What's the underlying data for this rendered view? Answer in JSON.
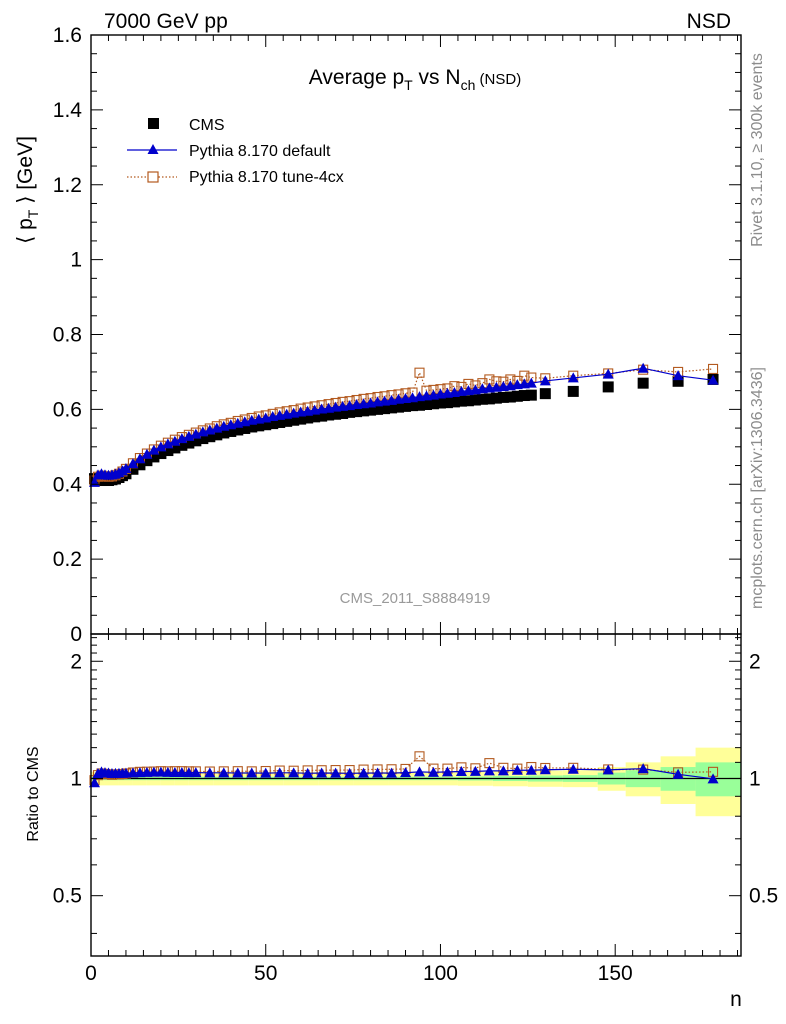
{
  "header": {
    "left": "7000 GeV pp",
    "right": "NSD"
  },
  "side_text": {
    "rivet": "Rivet 3.1.10, ≥ 300k events",
    "mcplots": "mcplots.cern.ch [arXiv:1306.3436]"
  },
  "chart_data": [
    {
      "type": "scatter",
      "title": "Average p_T vs N_ch (NSD)",
      "title_parts": {
        "main": "Average p",
        "sub1": "T",
        "mid": " vs N",
        "sub2": "ch",
        "tail": " (NSD)"
      },
      "ylabel": "⟨ p_T ⟩ [GeV]",
      "ylabel_parts": {
        "pre": "⟨ p",
        "sub": "T",
        "post": " ⟩ [GeV]"
      },
      "xlabel": "n",
      "watermark": "CMS_2011_S8884919",
      "xlim": [
        0,
        186
      ],
      "ylim": [
        0,
        1.6
      ],
      "x_ticks": [
        "0",
        "50",
        "100",
        "150"
      ],
      "y_ticks": [
        "0",
        "0.2",
        "0.4",
        "0.6",
        "0.8",
        "1",
        "1.2",
        "1.4",
        "1.6"
      ],
      "legend_position": "top-left",
      "series": [
        {
          "name": "CMS",
          "marker": "square",
          "color": "#000000",
          "x": [
            1,
            2,
            3,
            4,
            5,
            6,
            7,
            8,
            9,
            10,
            12,
            14,
            16,
            18,
            20,
            22,
            24,
            26,
            28,
            30,
            32,
            34,
            36,
            38,
            40,
            42,
            44,
            46,
            48,
            50,
            52,
            54,
            56,
            58,
            60,
            62,
            64,
            66,
            68,
            70,
            72,
            74,
            76,
            78,
            80,
            82,
            84,
            86,
            88,
            90,
            92,
            94,
            96,
            98,
            100,
            102,
            104,
            106,
            108,
            110,
            112,
            114,
            116,
            118,
            120,
            122,
            124,
            126,
            130,
            138,
            148,
            158,
            168,
            178
          ],
          "values": [
            0.415,
            0.412,
            0.41,
            0.41,
            0.41,
            0.412,
            0.414,
            0.418,
            0.423,
            0.428,
            0.44,
            0.452,
            0.463,
            0.473,
            0.482,
            0.49,
            0.497,
            0.504,
            0.51,
            0.516,
            0.522,
            0.527,
            0.532,
            0.537,
            0.541,
            0.545,
            0.549,
            0.553,
            0.556,
            0.559,
            0.562,
            0.565,
            0.568,
            0.571,
            0.574,
            0.577,
            0.58,
            0.582,
            0.585,
            0.587,
            0.589,
            0.592,
            0.594,
            0.596,
            0.598,
            0.6,
            0.602,
            0.604,
            0.606,
            0.608,
            0.61,
            0.611,
            0.613,
            0.615,
            0.617,
            0.618,
            0.62,
            0.622,
            0.623,
            0.625,
            0.627,
            0.628,
            0.63,
            0.632,
            0.633,
            0.635,
            0.637,
            0.638,
            0.642,
            0.648,
            0.66,
            0.67,
            0.675,
            0.68
          ]
        },
        {
          "name": "Pythia 8.170 default",
          "marker": "triangle",
          "color": "#0000cc",
          "x": [
            1,
            2,
            3,
            4,
            5,
            6,
            7,
            8,
            9,
            10,
            12,
            14,
            16,
            18,
            20,
            22,
            24,
            26,
            28,
            30,
            32,
            34,
            36,
            38,
            40,
            42,
            44,
            46,
            48,
            50,
            52,
            54,
            56,
            58,
            60,
            62,
            64,
            66,
            68,
            70,
            72,
            74,
            76,
            78,
            80,
            82,
            84,
            86,
            88,
            90,
            92,
            94,
            96,
            98,
            100,
            102,
            104,
            106,
            108,
            110,
            112,
            114,
            116,
            118,
            120,
            122,
            124,
            126,
            130,
            138,
            148,
            158,
            168,
            178
          ],
          "values": [
            0.405,
            0.425,
            0.428,
            0.425,
            0.424,
            0.425,
            0.427,
            0.431,
            0.436,
            0.442,
            0.455,
            0.468,
            0.48,
            0.491,
            0.5,
            0.508,
            0.515,
            0.522,
            0.528,
            0.534,
            0.54,
            0.545,
            0.55,
            0.555,
            0.559,
            0.563,
            0.567,
            0.571,
            0.574,
            0.577,
            0.581,
            0.584,
            0.587,
            0.59,
            0.593,
            0.595,
            0.598,
            0.601,
            0.603,
            0.606,
            0.608,
            0.61,
            0.613,
            0.615,
            0.617,
            0.62,
            0.622,
            0.624,
            0.627,
            0.629,
            0.631,
            0.634,
            0.636,
            0.638,
            0.641,
            0.643,
            0.645,
            0.648,
            0.65,
            0.652,
            0.655,
            0.657,
            0.659,
            0.661,
            0.663,
            0.666,
            0.668,
            0.67,
            0.676,
            0.684,
            0.694,
            0.71,
            0.69,
            0.678
          ]
        },
        {
          "name": "Pythia 8.170 tune-4cx",
          "marker": "open-square",
          "color": "#b35a1f",
          "x": [
            1,
            2,
            3,
            4,
            5,
            6,
            7,
            8,
            9,
            10,
            12,
            14,
            16,
            18,
            20,
            22,
            24,
            26,
            28,
            30,
            32,
            34,
            36,
            38,
            40,
            42,
            44,
            46,
            48,
            50,
            52,
            54,
            56,
            58,
            60,
            62,
            64,
            66,
            68,
            70,
            72,
            74,
            76,
            78,
            80,
            82,
            84,
            86,
            88,
            90,
            92,
            94,
            96,
            98,
            100,
            102,
            104,
            106,
            108,
            110,
            112,
            114,
            116,
            118,
            120,
            122,
            124,
            126,
            130,
            138,
            148,
            158,
            168,
            178
          ],
          "values": [
            0.41,
            0.42,
            0.423,
            0.421,
            0.42,
            0.421,
            0.424,
            0.428,
            0.434,
            0.441,
            0.456,
            0.47,
            0.482,
            0.493,
            0.503,
            0.511,
            0.519,
            0.526,
            0.532,
            0.538,
            0.544,
            0.549,
            0.555,
            0.56,
            0.564,
            0.569,
            0.573,
            0.577,
            0.581,
            0.584,
            0.588,
            0.592,
            0.595,
            0.598,
            0.602,
            0.605,
            0.608,
            0.611,
            0.614,
            0.617,
            0.62,
            0.622,
            0.625,
            0.628,
            0.63,
            0.633,
            0.635,
            0.638,
            0.64,
            0.643,
            0.645,
            0.698,
            0.65,
            0.652,
            0.654,
            0.656,
            0.662,
            0.66,
            0.668,
            0.664,
            0.67,
            0.68,
            0.675,
            0.674,
            0.68,
            0.676,
            0.69,
            0.685,
            0.683,
            0.69,
            0.696,
            0.706,
            0.7,
            0.708
          ]
        }
      ]
    },
    {
      "type": "scatter",
      "ylabel": "Ratio to CMS",
      "xlabel": "n",
      "xlim": [
        0,
        186
      ],
      "ylim": [
        0.35,
        2.35
      ],
      "y_scale": "log",
      "x_ticks": [
        "0",
        "50",
        "100",
        "150"
      ],
      "y_ticks": [
        "0.5",
        "1",
        "2"
      ],
      "reference_line": 1,
      "bands": {
        "colors": {
          "stat": "#99ff99",
          "total": "#ffff99"
        },
        "x": [
          2,
          6,
          10,
          14,
          18,
          22,
          26,
          30,
          40,
          50,
          60,
          70,
          80,
          90,
          100,
          110,
          120,
          130,
          140,
          150,
          160,
          170,
          180
        ],
        "x_edges": [
          [
            0,
            4
          ],
          [
            4,
            8
          ],
          [
            8,
            12
          ],
          [
            12,
            16
          ],
          [
            16,
            20
          ],
          [
            20,
            24
          ],
          [
            24,
            28
          ],
          [
            28,
            35
          ],
          [
            35,
            45
          ],
          [
            45,
            55
          ],
          [
            55,
            65
          ],
          [
            65,
            75
          ],
          [
            75,
            85
          ],
          [
            85,
            95
          ],
          [
            95,
            105
          ],
          [
            105,
            115
          ],
          [
            115,
            125
          ],
          [
            125,
            135
          ],
          [
            135,
            145
          ],
          [
            145,
            153
          ],
          [
            153,
            163
          ],
          [
            163,
            173
          ],
          [
            173,
            186
          ]
        ],
        "stat_half_width": [
          0.01,
          0.01,
          0.01,
          0.01,
          0.01,
          0.01,
          0.01,
          0.01,
          0.01,
          0.01,
          0.01,
          0.01,
          0.01,
          0.01,
          0.01,
          0.012,
          0.015,
          0.018,
          0.02,
          0.035,
          0.05,
          0.07,
          0.1
        ],
        "total_half_width": [
          0.04,
          0.04,
          0.04,
          0.04,
          0.04,
          0.04,
          0.04,
          0.04,
          0.04,
          0.04,
          0.04,
          0.04,
          0.04,
          0.04,
          0.04,
          0.042,
          0.045,
          0.048,
          0.05,
          0.07,
          0.1,
          0.14,
          0.2
        ]
      },
      "series": [
        {
          "name": "Pythia 8.170 default",
          "marker": "triangle",
          "color": "#0000cc",
          "x": [
            1,
            2,
            3,
            4,
            5,
            6,
            7,
            8,
            9,
            10,
            12,
            14,
            16,
            18,
            20,
            22,
            24,
            26,
            28,
            30,
            34,
            38,
            42,
            46,
            50,
            54,
            58,
            62,
            66,
            70,
            74,
            78,
            82,
            86,
            90,
            94,
            98,
            102,
            106,
            110,
            114,
            118,
            122,
            126,
            130,
            138,
            148,
            158,
            168,
            178
          ],
          "values": [
            0.975,
            1.03,
            1.04,
            1.035,
            1.033,
            1.03,
            1.031,
            1.031,
            1.031,
            1.032,
            1.034,
            1.035,
            1.037,
            1.038,
            1.038,
            1.037,
            1.036,
            1.036,
            1.035,
            1.035,
            1.034,
            1.034,
            1.033,
            1.033,
            1.032,
            1.034,
            1.034,
            1.031,
            1.033,
            1.032,
            1.031,
            1.032,
            1.033,
            1.032,
            1.035,
            1.04,
            1.037,
            1.04,
            1.042,
            1.043,
            1.046,
            1.046,
            1.05,
            1.05,
            1.053,
            1.056,
            1.052,
            1.06,
            1.025,
            0.998
          ]
        },
        {
          "name": "Pythia 8.170 tune-4cx",
          "marker": "open-square",
          "color": "#b35a1f",
          "x": [
            1,
            2,
            3,
            4,
            5,
            6,
            7,
            8,
            9,
            10,
            12,
            14,
            16,
            18,
            20,
            22,
            24,
            26,
            28,
            30,
            34,
            38,
            42,
            46,
            50,
            54,
            58,
            62,
            66,
            70,
            74,
            78,
            82,
            86,
            90,
            94,
            98,
            102,
            106,
            110,
            114,
            118,
            122,
            126,
            130,
            138,
            148,
            158,
            168,
            178
          ],
          "values": [
            0.99,
            1.02,
            1.03,
            1.027,
            1.025,
            1.022,
            1.024,
            1.024,
            1.026,
            1.03,
            1.036,
            1.04,
            1.041,
            1.042,
            1.044,
            1.043,
            1.044,
            1.044,
            1.043,
            1.043,
            1.042,
            1.043,
            1.044,
            1.043,
            1.045,
            1.048,
            1.047,
            1.049,
            1.05,
            1.051,
            1.051,
            1.054,
            1.055,
            1.056,
            1.058,
            1.14,
            1.06,
            1.06,
            1.068,
            1.062,
            1.095,
            1.065,
            1.06,
            1.07,
            1.064,
            1.065,
            1.055,
            1.054,
            1.037,
            1.04
          ]
        }
      ]
    }
  ]
}
